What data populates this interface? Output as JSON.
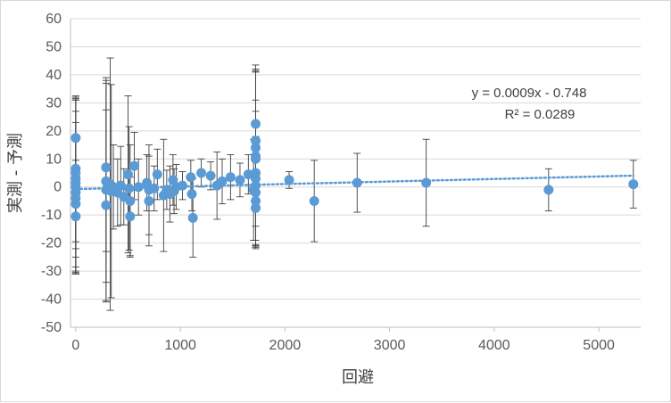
{
  "chart_data": {
    "type": "scatter",
    "xlabel": "回避",
    "ylabel": "実測 - 予測",
    "xlim": [
      -50,
      5400
    ],
    "ylim": [
      -50,
      60
    ],
    "xticks": [
      "0",
      "1000",
      "2000",
      "3000",
      "4000",
      "5000"
    ],
    "yticks": [
      "60",
      "50",
      "40",
      "30",
      "20",
      "10",
      "0",
      "-10",
      "-20",
      "-30",
      "-40",
      "-50"
    ],
    "grid": "horizontal",
    "point_color": "#5b9bd5",
    "trendline": {
      "slope": 0.0009,
      "intercept": -0.748,
      "equation": "y = 0.0009x - 0.748",
      "r2_label": "R² = 0.0289",
      "style": "dotted",
      "color": "#5b9bd5"
    },
    "points": [
      {
        "x": 0,
        "y": 17.5,
        "err": 0
      },
      {
        "x": 0,
        "y": 6.5,
        "err": 26
      },
      {
        "x": 0,
        "y": 5,
        "err": 27
      },
      {
        "x": 0,
        "y": 3,
        "err": 28
      },
      {
        "x": 0,
        "y": 1.5,
        "err": 30
      },
      {
        "x": 0,
        "y": 0,
        "err": 31
      },
      {
        "x": 0,
        "y": -2,
        "err": 29
      },
      {
        "x": 0,
        "y": -4,
        "err": 27
      },
      {
        "x": 0,
        "y": -6,
        "err": 24
      },
      {
        "x": 0,
        "y": -10.5,
        "err": 20
      },
      {
        "x": 290,
        "y": 7,
        "err": 30
      },
      {
        "x": 290,
        "y": 2,
        "err": 36
      },
      {
        "x": 290,
        "y": -1,
        "err": 40
      },
      {
        "x": 290,
        "y": -6.5,
        "err": 34
      },
      {
        "x": 330,
        "y": 1,
        "err": 45
      },
      {
        "x": 340,
        "y": -1.5,
        "err": 38
      },
      {
        "x": 360,
        "y": 0,
        "err": 15
      },
      {
        "x": 400,
        "y": -2,
        "err": 12
      },
      {
        "x": 430,
        "y": 0.5,
        "err": 14
      },
      {
        "x": 460,
        "y": -3.5,
        "err": 10
      },
      {
        "x": 500,
        "y": 4.5,
        "err": 28
      },
      {
        "x": 510,
        "y": -0.5,
        "err": 22
      },
      {
        "x": 520,
        "y": -5,
        "err": 20
      },
      {
        "x": 520,
        "y": -10.5,
        "err": 14
      },
      {
        "x": 560,
        "y": 7.5,
        "err": 12
      },
      {
        "x": 600,
        "y": 0,
        "err": 10
      },
      {
        "x": 680,
        "y": 1.5,
        "err": 10
      },
      {
        "x": 700,
        "y": -1,
        "err": 16
      },
      {
        "x": 700,
        "y": -5,
        "err": 16
      },
      {
        "x": 750,
        "y": -0.5,
        "err": 8
      },
      {
        "x": 780,
        "y": 4.5,
        "err": 9
      },
      {
        "x": 840,
        "y": -3,
        "err": 20
      },
      {
        "x": 870,
        "y": -1,
        "err": 7
      },
      {
        "x": 900,
        "y": -2.5,
        "err": 10
      },
      {
        "x": 930,
        "y": 2.5,
        "err": 9
      },
      {
        "x": 940,
        "y": -1.5,
        "err": 8
      },
      {
        "x": 960,
        "y": 0,
        "err": 8
      },
      {
        "x": 1020,
        "y": 0.5,
        "err": 5
      },
      {
        "x": 1100,
        "y": 3.5,
        "err": 6
      },
      {
        "x": 1110,
        "y": -2.5,
        "err": 6
      },
      {
        "x": 1120,
        "y": -11,
        "err": 14
      },
      {
        "x": 1200,
        "y": 5,
        "err": 5
      },
      {
        "x": 1290,
        "y": 4,
        "err": 5
      },
      {
        "x": 1350,
        "y": 0.5,
        "err": 12
      },
      {
        "x": 1400,
        "y": 2,
        "err": 8
      },
      {
        "x": 1480,
        "y": 3.5,
        "err": 8
      },
      {
        "x": 1570,
        "y": 2.5,
        "err": 6
      },
      {
        "x": 1650,
        "y": 4.5,
        "err": 7
      },
      {
        "x": 1700,
        "y": -1,
        "err": 18
      },
      {
        "x": 1720,
        "y": 22.5,
        "err": 21
      },
      {
        "x": 1720,
        "y": 16.5,
        "err": 25
      },
      {
        "x": 1720,
        "y": 14,
        "err": 28
      },
      {
        "x": 1720,
        "y": 11,
        "err": 30
      },
      {
        "x": 1720,
        "y": 10,
        "err": 31
      },
      {
        "x": 1720,
        "y": 5,
        "err": 26
      },
      {
        "x": 1720,
        "y": 3,
        "err": 24
      },
      {
        "x": 1720,
        "y": 0.5,
        "err": 22
      },
      {
        "x": 1720,
        "y": -2,
        "err": 20
      },
      {
        "x": 1720,
        "y": -5,
        "err": 16
      },
      {
        "x": 1720,
        "y": -7.5,
        "err": 13
      },
      {
        "x": 2040,
        "y": 2.5,
        "err": 3
      },
      {
        "x": 2280,
        "y": -5,
        "err": 14.5
      },
      {
        "x": 2690,
        "y": 1.5,
        "err": 10.5
      },
      {
        "x": 3350,
        "y": 1.5,
        "err": 15.5
      },
      {
        "x": 4520,
        "y": -1,
        "err": 7.5
      },
      {
        "x": 5330,
        "y": 1,
        "err": 8.5
      }
    ]
  }
}
